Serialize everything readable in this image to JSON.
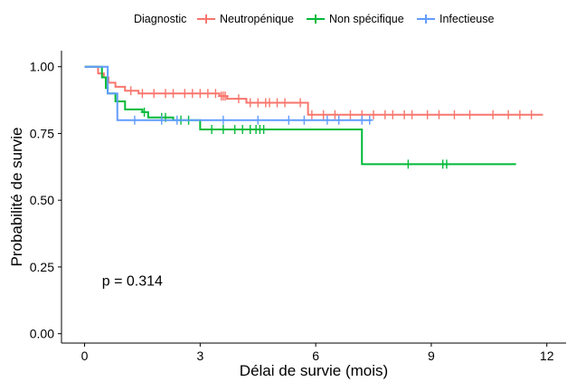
{
  "chart_data": {
    "type": "line",
    "title": "",
    "xlabel": "Délai de survie (mois)",
    "ylabel": "Probabilité de survie",
    "xlim": [
      -0.6,
      12.5
    ],
    "ylim": [
      -0.035,
      1.06
    ],
    "x_ticks": [
      0,
      3,
      6,
      9,
      12
    ],
    "y_ticks": [
      0.0,
      0.25,
      0.5,
      0.75,
      1.0
    ],
    "x_tick_labels": [
      "0",
      "3",
      "6",
      "9",
      "12"
    ],
    "y_tick_labels": [
      "0.00",
      "0.25",
      "0.50",
      "0.75",
      "1.00"
    ],
    "grid": false,
    "legend": {
      "title": "Diagnostic",
      "position": "top"
    },
    "annotation": "p = 0.314",
    "series": [
      {
        "name": "Neutropénique",
        "color": "#F8766D",
        "steps": [
          [
            0,
            1.0
          ],
          [
            0.35,
            0.975
          ],
          [
            0.5,
            0.96
          ],
          [
            0.62,
            0.94
          ],
          [
            0.8,
            0.925
          ],
          [
            1.05,
            0.91
          ],
          [
            1.4,
            0.9
          ],
          [
            3.5,
            0.89
          ],
          [
            3.7,
            0.88
          ],
          [
            4.2,
            0.865
          ],
          [
            5.8,
            0.82
          ],
          [
            11.9,
            0.82
          ]
        ],
        "censor": [
          1.2,
          1.5,
          1.8,
          2.1,
          2.3,
          2.6,
          2.8,
          3.0,
          3.2,
          3.4,
          3.55,
          3.6,
          3.65,
          4.0,
          4.3,
          4.5,
          4.7,
          4.8,
          5.0,
          5.2,
          5.6,
          5.9,
          6.2,
          6.5,
          6.9,
          7.2,
          7.5,
          7.8,
          8.0,
          8.3,
          8.5,
          8.9,
          9.2,
          9.6,
          10.0,
          10.6,
          11.0,
          11.3,
          11.6
        ]
      },
      {
        "name": "Non spécifique",
        "color": "#00BA38",
        "steps": [
          [
            0,
            1.0
          ],
          [
            0.45,
            0.96
          ],
          [
            0.55,
            0.92
          ],
          [
            0.6,
            0.9
          ],
          [
            0.8,
            0.87
          ],
          [
            1.05,
            0.84
          ],
          [
            1.5,
            0.83
          ],
          [
            1.65,
            0.81
          ],
          [
            2.3,
            0.8
          ],
          [
            3.0,
            0.765
          ],
          [
            7.2,
            0.635
          ],
          [
            11.2,
            0.635
          ]
        ],
        "censor": [
          1.55,
          2.0,
          2.1,
          2.5,
          2.7,
          3.3,
          3.6,
          3.9,
          4.1,
          4.3,
          4.45,
          4.55,
          4.65,
          8.4,
          9.3,
          9.4
        ]
      },
      {
        "name": "Infectieuse",
        "color": "#619CFF",
        "steps": [
          [
            0,
            1.0
          ],
          [
            0.6,
            0.9
          ],
          [
            0.85,
            0.8
          ],
          [
            7.45,
            0.8
          ]
        ],
        "censor": [
          1.3,
          2.0,
          2.4,
          3.6,
          4.5,
          5.3,
          5.7,
          6.3,
          6.6,
          7.2,
          7.4
        ]
      }
    ]
  }
}
